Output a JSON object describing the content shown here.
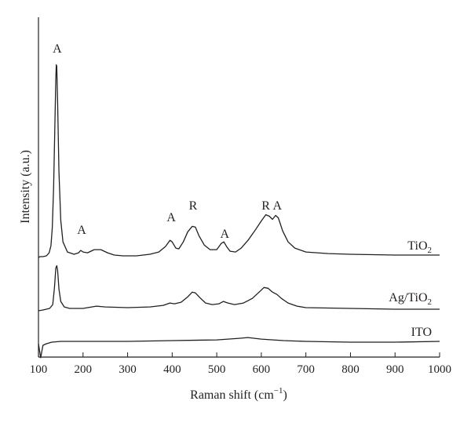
{
  "chart_data": {
    "type": "line",
    "xlabel": "Raman shift (cm",
    "xlabel_sup": "−1",
    "xlabel_close": ")",
    "ylabel": "Intensity (a.u.)",
    "xlim": [
      100,
      1000
    ],
    "x_ticks": [
      100,
      200,
      300,
      400,
      500,
      600,
      700,
      800,
      900,
      1000
    ],
    "grid": false,
    "y_tick_labels": false,
    "series": [
      {
        "name": "TiO",
        "name_sub": "2",
        "baseline": 0.095,
        "points": [
          [
            100,
            0
          ],
          [
            104,
            1
          ],
          [
            110,
            1
          ],
          [
            118,
            2
          ],
          [
            124,
            6
          ],
          [
            128,
            15
          ],
          [
            131,
            38
          ],
          [
            134,
            90
          ],
          [
            137,
            175
          ],
          [
            139,
            230
          ],
          [
            140,
            248
          ],
          [
            141,
            246
          ],
          [
            143,
            200
          ],
          [
            146,
            110
          ],
          [
            150,
            48
          ],
          [
            155,
            20
          ],
          [
            165,
            7
          ],
          [
            180,
            4
          ],
          [
            190,
            6
          ],
          [
            195,
            9
          ],
          [
            200,
            7
          ],
          [
            210,
            6
          ],
          [
            225,
            10
          ],
          [
            240,
            10
          ],
          [
            255,
            6
          ],
          [
            270,
            3
          ],
          [
            290,
            2
          ],
          [
            320,
            2
          ],
          [
            350,
            4
          ],
          [
            370,
            7
          ],
          [
            385,
            14
          ],
          [
            395,
            22
          ],
          [
            400,
            20
          ],
          [
            408,
            12
          ],
          [
            415,
            11
          ],
          [
            425,
            20
          ],
          [
            435,
            33
          ],
          [
            445,
            40
          ],
          [
            452,
            39
          ],
          [
            460,
            28
          ],
          [
            472,
            16
          ],
          [
            485,
            10
          ],
          [
            500,
            10
          ],
          [
            510,
            18
          ],
          [
            516,
            20
          ],
          [
            522,
            14
          ],
          [
            530,
            8
          ],
          [
            542,
            7
          ],
          [
            555,
            12
          ],
          [
            570,
            22
          ],
          [
            585,
            34
          ],
          [
            600,
            47
          ],
          [
            610,
            55
          ],
          [
            618,
            53
          ],
          [
            625,
            49
          ],
          [
            632,
            54
          ],
          [
            638,
            51
          ],
          [
            648,
            34
          ],
          [
            660,
            20
          ],
          [
            675,
            12
          ],
          [
            700,
            7
          ],
          [
            750,
            5
          ],
          [
            800,
            4
          ],
          [
            900,
            3
          ],
          [
            1000,
            3
          ]
        ]
      },
      {
        "name": "Ag/TiO",
        "name_sub": "2",
        "baseline": 0.0,
        "points": [
          [
            100,
            0
          ],
          [
            110,
            1
          ],
          [
            125,
            3
          ],
          [
            132,
            8
          ],
          [
            136,
            30
          ],
          [
            139,
            55
          ],
          [
            141,
            58
          ],
          [
            143,
            52
          ],
          [
            146,
            28
          ],
          [
            150,
            12
          ],
          [
            158,
            5
          ],
          [
            170,
            3
          ],
          [
            200,
            3
          ],
          [
            230,
            6
          ],
          [
            250,
            5
          ],
          [
            300,
            4
          ],
          [
            350,
            5
          ],
          [
            380,
            7
          ],
          [
            395,
            10
          ],
          [
            405,
            9
          ],
          [
            420,
            11
          ],
          [
            435,
            18
          ],
          [
            445,
            24
          ],
          [
            452,
            23
          ],
          [
            462,
            17
          ],
          [
            475,
            10
          ],
          [
            490,
            8
          ],
          [
            505,
            9
          ],
          [
            515,
            12
          ],
          [
            525,
            10
          ],
          [
            540,
            8
          ],
          [
            560,
            10
          ],
          [
            580,
            16
          ],
          [
            595,
            24
          ],
          [
            606,
            30
          ],
          [
            615,
            29
          ],
          [
            625,
            24
          ],
          [
            635,
            21
          ],
          [
            645,
            16
          ],
          [
            660,
            10
          ],
          [
            680,
            6
          ],
          [
            700,
            4
          ],
          [
            800,
            3
          ],
          [
            900,
            2
          ],
          [
            1000,
            2
          ]
        ]
      },
      {
        "name": "ITO",
        "baseline": -0.14,
        "points": [
          [
            100,
            0
          ],
          [
            105,
            -18
          ],
          [
            110,
            -2
          ],
          [
            118,
            0
          ],
          [
            130,
            2
          ],
          [
            150,
            3
          ],
          [
            200,
            3
          ],
          [
            300,
            3
          ],
          [
            400,
            4
          ],
          [
            500,
            5
          ],
          [
            550,
            7
          ],
          [
            570,
            8
          ],
          [
            600,
            6
          ],
          [
            650,
            4
          ],
          [
            700,
            3
          ],
          [
            800,
            2
          ],
          [
            900,
            2
          ],
          [
            1000,
            3
          ]
        ]
      }
    ],
    "annotations": [
      {
        "text": "A",
        "x": 142,
        "series": 0,
        "rel": 1.0
      },
      {
        "text": "A",
        "x": 197,
        "series": 0,
        "rel": 0.16
      },
      {
        "text": "A",
        "x": 398,
        "series": 0,
        "rel": 0.18
      },
      {
        "text": "R",
        "x": 447,
        "series": 0,
        "rel": 0.26
      },
      {
        "text": "A",
        "x": 518,
        "series": 0,
        "rel": 0.16
      },
      {
        "text": "R",
        "x": 610,
        "series": 0,
        "rel": 0.3
      },
      {
        "text": "A",
        "x": 636,
        "series": 0,
        "rel": 0.3
      }
    ]
  }
}
